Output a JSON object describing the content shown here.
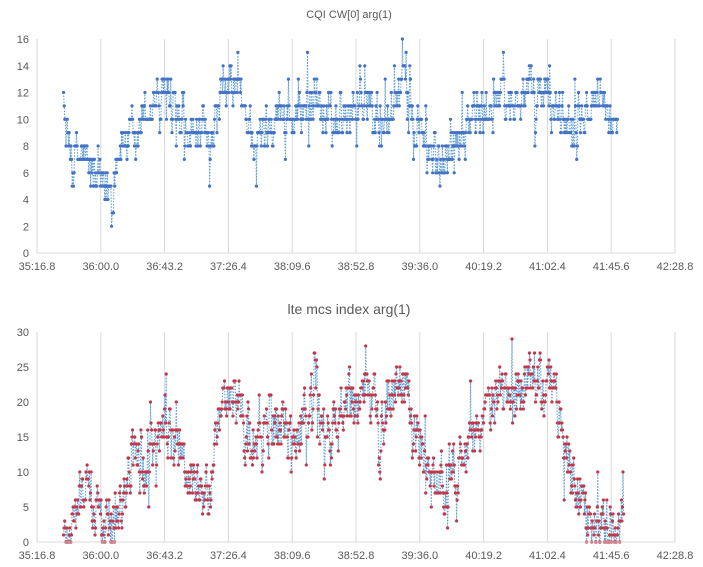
{
  "chart_data": [
    {
      "type": "scatter",
      "title": "CQI CW[0] arg(1)",
      "xlabel": "",
      "ylabel": "",
      "x_unit": "minutes",
      "xlim": [
        35.28,
        42.48
      ],
      "ylim": [
        0,
        16
      ],
      "y_ticks": [
        0,
        2,
        4,
        6,
        8,
        10,
        12,
        14,
        16
      ],
      "x_ticks": [
        {
          "value": 35.28,
          "label": "35:16.8"
        },
        {
          "value": 36.0,
          "label": "36:00.0"
        },
        {
          "value": 36.72,
          "label": "36:43.2"
        },
        {
          "value": 37.44,
          "label": "37:26.4"
        },
        {
          "value": 38.16,
          "label": "38:09.6"
        },
        {
          "value": 38.88,
          "label": "38:52.8"
        },
        {
          "value": 39.6,
          "label": "39:36.0"
        },
        {
          "value": 40.32,
          "label": "40:19.2"
        },
        {
          "value": 41.04,
          "label": "41:02.4"
        },
        {
          "value": 41.76,
          "label": "41:45.6"
        },
        {
          "value": 42.48,
          "label": "42:28.8"
        }
      ],
      "grid": "vertical",
      "marker_color": "#4472c4",
      "line_color": "#5b9bd5",
      "line_style": "dotted",
      "x_range_data": [
        35.58,
        41.83
      ],
      "profile": [
        [
          35.58,
          9.0
        ],
        [
          35.7,
          7.0
        ],
        [
          35.8,
          7.5
        ],
        [
          35.9,
          6.0
        ],
        [
          36.0,
          5.0
        ],
        [
          36.08,
          4.5
        ],
        [
          36.18,
          7.0
        ],
        [
          36.28,
          9.0
        ],
        [
          36.38,
          7.5
        ],
        [
          36.48,
          10.5
        ],
        [
          36.6,
          11.5
        ],
        [
          36.72,
          12.0
        ],
        [
          36.8,
          9.5
        ],
        [
          36.9,
          9.0
        ],
        [
          37.0,
          8.5
        ],
        [
          37.1,
          9.0
        ],
        [
          37.2,
          8.0
        ],
        [
          37.3,
          10.5
        ],
        [
          37.4,
          12.0
        ],
        [
          37.5,
          12.5
        ],
        [
          37.6,
          11.0
        ],
        [
          37.7,
          9.0
        ],
        [
          37.8,
          8.5
        ],
        [
          37.9,
          10.0
        ],
        [
          38.0,
          10.5
        ],
        [
          38.1,
          10.0
        ],
        [
          38.2,
          9.5
        ],
        [
          38.3,
          11.5
        ],
        [
          38.4,
          12.5
        ],
        [
          38.5,
          10.0
        ],
        [
          38.6,
          9.5
        ],
        [
          38.7,
          10.0
        ],
        [
          38.8,
          11.0
        ],
        [
          38.9,
          10.5
        ],
        [
          39.0,
          11.5
        ],
        [
          39.1,
          10.0
        ],
        [
          39.2,
          9.0
        ],
        [
          39.3,
          11.0
        ],
        [
          39.4,
          12.5
        ],
        [
          39.5,
          10.5
        ],
        [
          39.6,
          9.0
        ],
        [
          39.7,
          7.5
        ],
        [
          39.8,
          6.5
        ],
        [
          39.9,
          7.5
        ],
        [
          40.0,
          8.5
        ],
        [
          40.1,
          9.5
        ],
        [
          40.2,
          10.5
        ],
        [
          40.3,
          10.0
        ],
        [
          40.4,
          11.0
        ],
        [
          40.5,
          11.5
        ],
        [
          40.6,
          11.0
        ],
        [
          40.7,
          11.5
        ],
        [
          40.8,
          12.0
        ],
        [
          40.9,
          11.5
        ],
        [
          41.0,
          12.0
        ],
        [
          41.1,
          11.0
        ],
        [
          41.2,
          10.5
        ],
        [
          41.3,
          9.5
        ],
        [
          41.4,
          11.0
        ],
        [
          41.5,
          11.5
        ],
        [
          41.6,
          12.0
        ],
        [
          41.7,
          11.5
        ],
        [
          41.83,
          8.0
        ]
      ],
      "amplitude": 2.6,
      "point_count": 900
    },
    {
      "type": "scatter",
      "title": "lte mcs index arg(1)",
      "xlabel": "",
      "ylabel": "",
      "x_unit": "minutes",
      "xlim": [
        35.28,
        42.48
      ],
      "ylim": [
        0,
        30
      ],
      "y_ticks": [
        0,
        5,
        10,
        15,
        20,
        25,
        30
      ],
      "x_ticks": [
        {
          "value": 35.28,
          "label": "35:16.8"
        },
        {
          "value": 36.0,
          "label": "36:00.0"
        },
        {
          "value": 36.72,
          "label": "36:43.2"
        },
        {
          "value": 37.44,
          "label": "37:26.4"
        },
        {
          "value": 38.16,
          "label": "38:09.6"
        },
        {
          "value": 38.88,
          "label": "38:52.8"
        },
        {
          "value": 39.6,
          "label": "39:36.0"
        },
        {
          "value": 40.32,
          "label": "40:19.2"
        },
        {
          "value": 41.04,
          "label": "41:02.4"
        },
        {
          "value": 41.76,
          "label": "41:45.6"
        },
        {
          "value": 42.48,
          "label": "42:28.8"
        }
      ],
      "grid": "vertical",
      "marker_color": "#c0384b",
      "line_color": "#5b9bd5",
      "line_style": "dotted",
      "x_range_data": [
        35.58,
        41.9
      ],
      "profile": [
        [
          35.58,
          1.0
        ],
        [
          35.7,
          3.0
        ],
        [
          35.8,
          8.0
        ],
        [
          35.9,
          6.0
        ],
        [
          36.0,
          3.0
        ],
        [
          36.08,
          2.0
        ],
        [
          36.18,
          4.0
        ],
        [
          36.28,
          9.0
        ],
        [
          36.38,
          12.0
        ],
        [
          36.48,
          8.0
        ],
        [
          36.6,
          14.0
        ],
        [
          36.72,
          18.0
        ],
        [
          36.8,
          14.0
        ],
        [
          36.9,
          12.0
        ],
        [
          37.0,
          9.0
        ],
        [
          37.1,
          8.0
        ],
        [
          37.2,
          6.0
        ],
        [
          37.3,
          14.0
        ],
        [
          37.4,
          20.0
        ],
        [
          37.5,
          22.0
        ],
        [
          37.6,
          17.0
        ],
        [
          37.7,
          13.0
        ],
        [
          37.8,
          15.0
        ],
        [
          37.9,
          16.0
        ],
        [
          38.0,
          17.0
        ],
        [
          38.1,
          16.0
        ],
        [
          38.2,
          13.0
        ],
        [
          38.3,
          18.0
        ],
        [
          38.4,
          22.0
        ],
        [
          38.5,
          15.0
        ],
        [
          38.6,
          14.0
        ],
        [
          38.7,
          18.0
        ],
        [
          38.8,
          21.0
        ],
        [
          38.9,
          20.0
        ],
        [
          39.0,
          23.0
        ],
        [
          39.1,
          20.0
        ],
        [
          39.2,
          16.0
        ],
        [
          39.3,
          21.0
        ],
        [
          39.4,
          23.0
        ],
        [
          39.5,
          18.0
        ],
        [
          39.6,
          14.0
        ],
        [
          39.7,
          10.0
        ],
        [
          39.8,
          9.0
        ],
        [
          39.9,
          9.5
        ],
        [
          40.0,
          11.0
        ],
        [
          40.1,
          13.0
        ],
        [
          40.2,
          16.0
        ],
        [
          40.3,
          17.0
        ],
        [
          40.4,
          19.0
        ],
        [
          40.5,
          21.0
        ],
        [
          40.6,
          20.0
        ],
        [
          40.7,
          21.0
        ],
        [
          40.8,
          23.0
        ],
        [
          40.9,
          24.0
        ],
        [
          41.0,
          25.0
        ],
        [
          41.1,
          23.0
        ],
        [
          41.2,
          16.0
        ],
        [
          41.3,
          10.0
        ],
        [
          41.4,
          6.0
        ],
        [
          41.5,
          3.0
        ],
        [
          41.6,
          2.0
        ],
        [
          41.7,
          3.0
        ],
        [
          41.8,
          2.0
        ],
        [
          41.9,
          2.0
        ]
      ],
      "amplitude": 6.0,
      "point_count": 1000
    }
  ]
}
